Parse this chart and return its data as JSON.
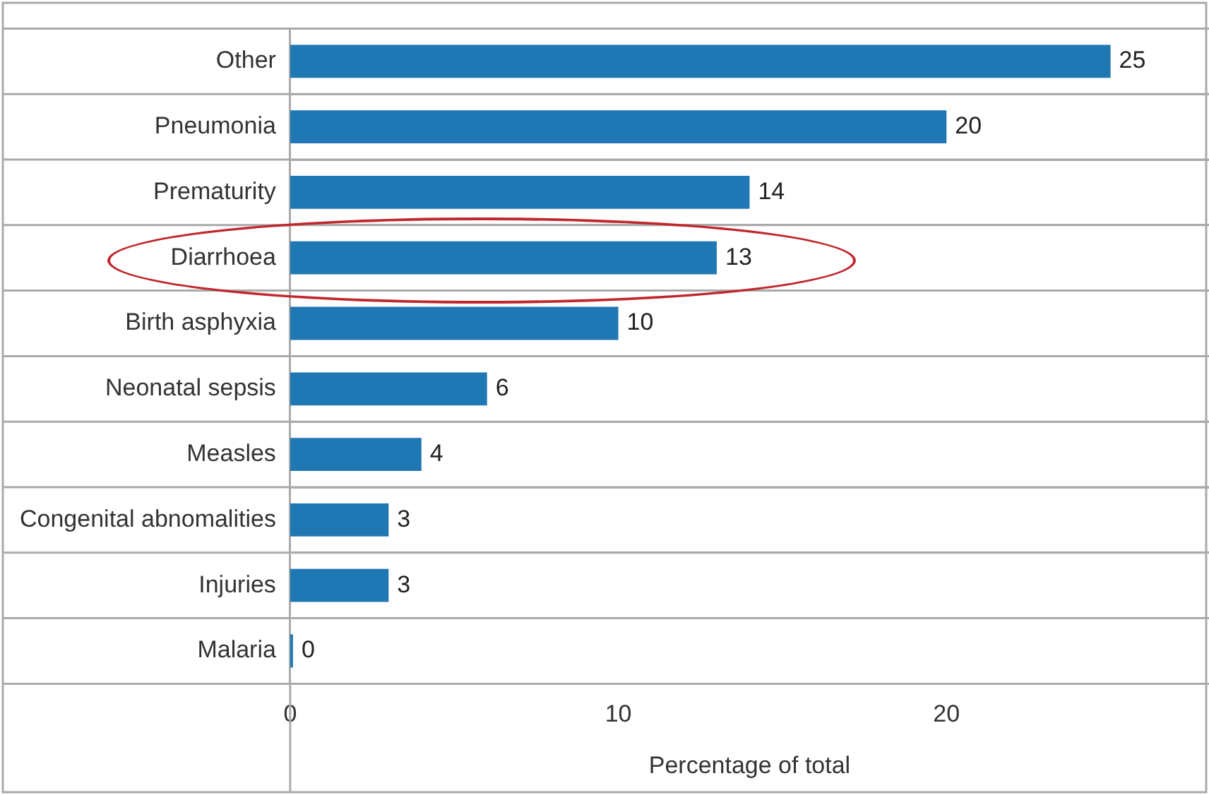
{
  "chart_data": {
    "type": "bar",
    "orientation": "horizontal",
    "xlabel": "Percentage of total",
    "categories": [
      "Other",
      "Pneumonia",
      "Prematurity",
      "Diarrhoea",
      "Birth asphyxia",
      "Neonatal sepsis",
      "Measles",
      "Congenital abnomalities",
      "Injuries",
      "Malaria"
    ],
    "values": [
      25,
      20,
      14,
      13,
      10,
      6,
      4,
      3,
      3,
      0
    ],
    "color": "#1f77b4",
    "xlim": [
      0,
      28
    ],
    "xticks": [
      0,
      10,
      20
    ],
    "grid": "y",
    "legend": false,
    "data_labels": true
  }
}
